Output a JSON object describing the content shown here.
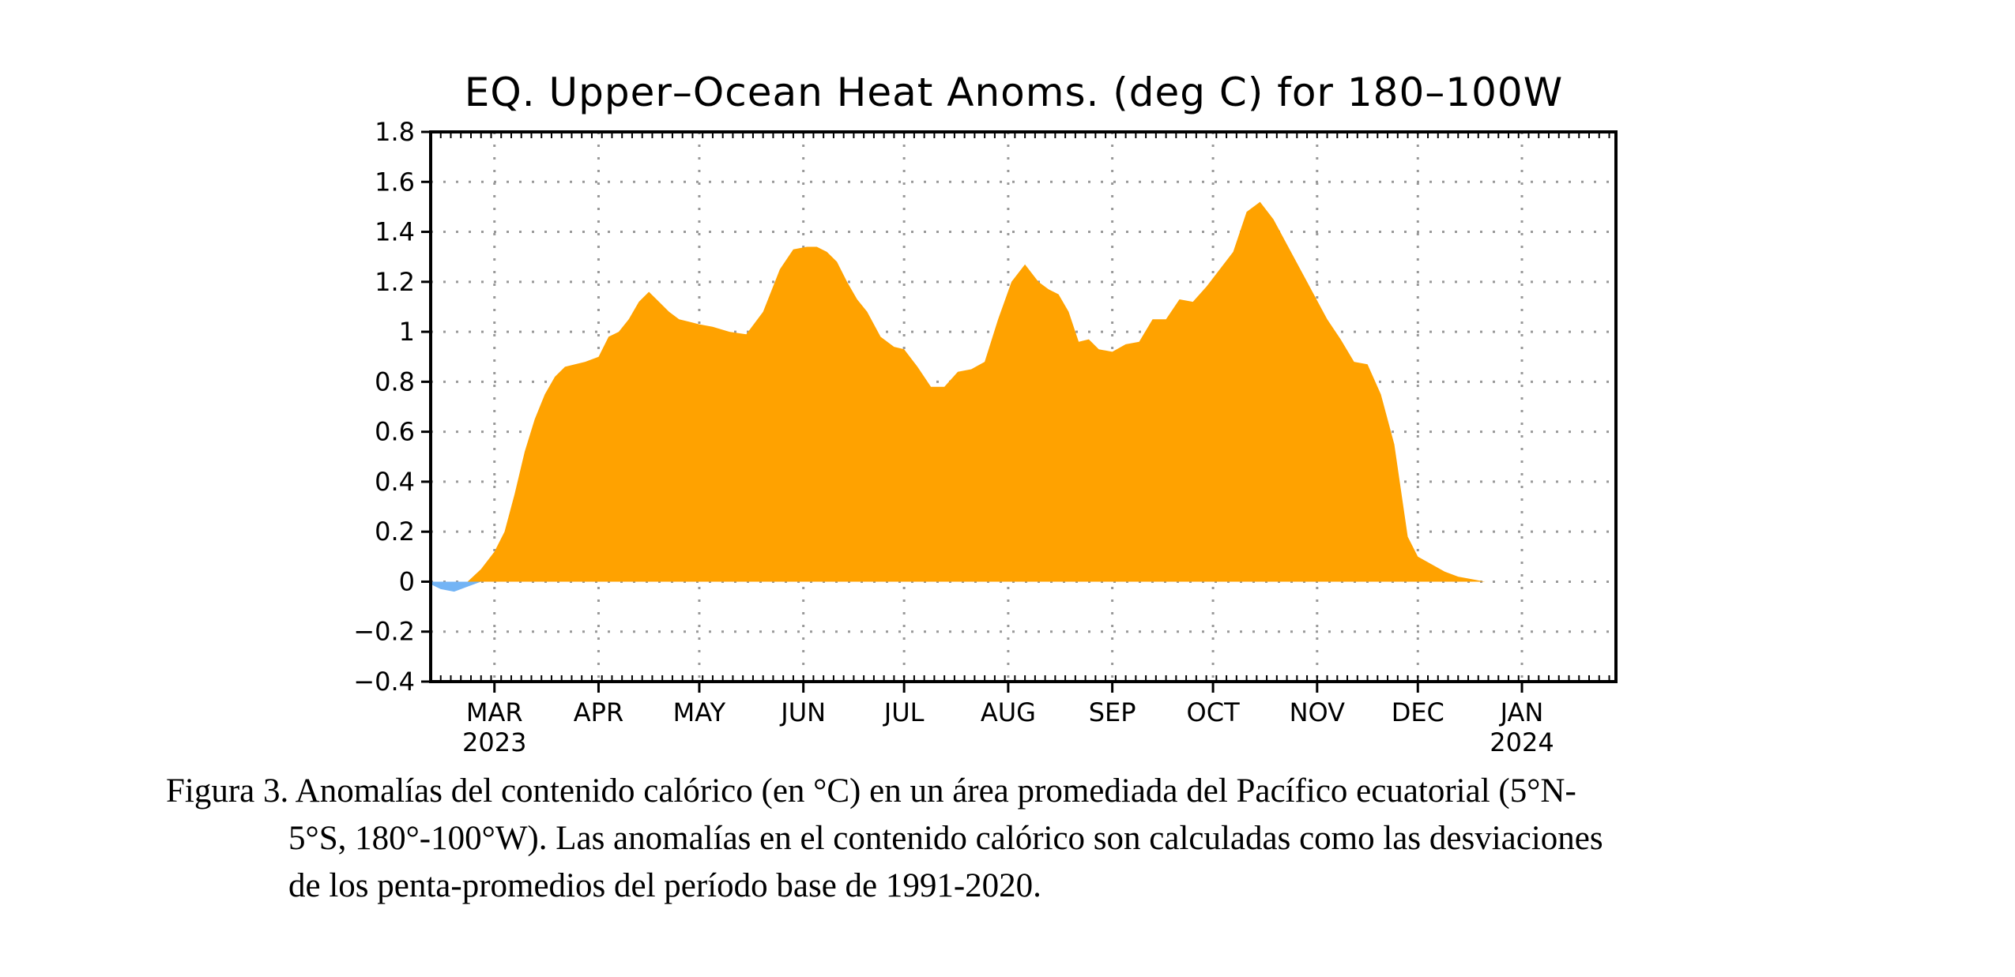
{
  "chart_data": {
    "type": "area",
    "title": "EQ. Upper–Ocean Heat Anoms. (deg C) for 180–100W",
    "xlabel": "",
    "ylabel": "",
    "ylim": [
      -0.4,
      1.8
    ],
    "yticks": [
      1.8,
      1.6,
      1.4,
      1.2,
      1,
      0.8,
      0.6,
      0.4,
      0.2,
      0,
      -0.2,
      -0.4
    ],
    "ytick_labels": [
      "1.8",
      "1.6",
      "1.4",
      "1.2",
      "1",
      "0.8",
      "0.6",
      "0.4",
      "0.2",
      "0",
      "−0.2",
      "−0.4"
    ],
    "xlim": [
      "2023-02-10",
      "2024-01-29"
    ],
    "xticks": [
      {
        "date": "2023-03-01",
        "label": "MAR",
        "year": "2023"
      },
      {
        "date": "2023-04-01",
        "label": "APR",
        "year": ""
      },
      {
        "date": "2023-05-01",
        "label": "MAY",
        "year": ""
      },
      {
        "date": "2023-06-01",
        "label": "JUN",
        "year": ""
      },
      {
        "date": "2023-07-01",
        "label": "JUL",
        "year": ""
      },
      {
        "date": "2023-08-01",
        "label": "AUG",
        "year": ""
      },
      {
        "date": "2023-09-01",
        "label": "SEP",
        "year": ""
      },
      {
        "date": "2023-10-01",
        "label": "OCT",
        "year": ""
      },
      {
        "date": "2023-11-01",
        "label": "NOV",
        "year": ""
      },
      {
        "date": "2023-12-01",
        "label": "DEC",
        "year": ""
      },
      {
        "date": "2024-01-01",
        "label": "JAN",
        "year": "2024"
      }
    ],
    "grid": true,
    "positive_color": "#FFA200",
    "negative_color": "#73B4F5",
    "series": [
      {
        "x": [
          "2023-02-10",
          "2023-02-13",
          "2023-02-17",
          "2023-02-21",
          "2023-02-25",
          "2023-03-01",
          "2023-03-04",
          "2023-03-07",
          "2023-03-10",
          "2023-03-13",
          "2023-03-16",
          "2023-03-19",
          "2023-03-22",
          "2023-03-25",
          "2023-03-28",
          "2023-04-01",
          "2023-04-04",
          "2023-04-07",
          "2023-04-10",
          "2023-04-13",
          "2023-04-16",
          "2023-04-19",
          "2023-04-22",
          "2023-04-25",
          "2023-04-28",
          "2023-05-01",
          "2023-05-05",
          "2023-05-10",
          "2023-05-15",
          "2023-05-20",
          "2023-05-25",
          "2023-05-29",
          "2023-06-02",
          "2023-06-05",
          "2023-06-08",
          "2023-06-11",
          "2023-06-14",
          "2023-06-17",
          "2023-06-20",
          "2023-06-24",
          "2023-06-28",
          "2023-07-01",
          "2023-07-05",
          "2023-07-09",
          "2023-07-13",
          "2023-07-17",
          "2023-07-21",
          "2023-07-25",
          "2023-07-29",
          "2023-08-02",
          "2023-08-06",
          "2023-08-10",
          "2023-08-13",
          "2023-08-16",
          "2023-08-19",
          "2023-08-22",
          "2023-08-25",
          "2023-08-28",
          "2023-09-01",
          "2023-09-05",
          "2023-09-09",
          "2023-09-13",
          "2023-09-17",
          "2023-09-21",
          "2023-09-25",
          "2023-09-29",
          "2023-10-03",
          "2023-10-07",
          "2023-10-11",
          "2023-10-15",
          "2023-10-19",
          "2023-10-23",
          "2023-10-27",
          "2023-10-31",
          "2023-11-04",
          "2023-11-08",
          "2023-11-12",
          "2023-11-16",
          "2023-11-20",
          "2023-11-24",
          "2023-11-28",
          "2023-12-01",
          "2023-12-05",
          "2023-12-09",
          "2023-12-13",
          "2023-12-17",
          "2023-12-21",
          "2023-12-25",
          "2023-12-29",
          "2024-01-02",
          "2024-01-06",
          "2024-01-10",
          "2024-01-14",
          "2024-01-18",
          "2024-01-22",
          "2024-01-26",
          "2024-01-29"
        ],
        "values": [
          -0.01,
          -0.03,
          -0.04,
          -0.02,
          0.05,
          0.12,
          0.2,
          0.35,
          0.52,
          0.65,
          0.75,
          0.82,
          0.86,
          0.87,
          0.88,
          0.9,
          0.98,
          1.0,
          1.05,
          1.12,
          1.16,
          1.12,
          1.08,
          1.05,
          1.04,
          1.03,
          1.02,
          1.0,
          0.99,
          1.08,
          1.25,
          1.33,
          1.34,
          1.34,
          1.32,
          1.28,
          1.2,
          1.13,
          1.08,
          0.98,
          0.94,
          0.93,
          0.86,
          0.78,
          0.78,
          0.84,
          0.85,
          0.88,
          1.05,
          1.2,
          1.27,
          1.2,
          1.17,
          1.15,
          1.08,
          0.96,
          0.97,
          0.93,
          0.92,
          0.95,
          0.96,
          1.05,
          1.05,
          1.13,
          1.12,
          1.18,
          1.25,
          1.32,
          1.48,
          1.52,
          1.45,
          1.35,
          1.25,
          1.15,
          1.05,
          0.97,
          0.88,
          0.87,
          0.75,
          0.55,
          0.18,
          0.1,
          0.07,
          0.04,
          0.02,
          0.01,
          0.0,
          0.0,
          0.0,
          0.0,
          0.0,
          0.0,
          0.0,
          0.0,
          0.0,
          0.0,
          0.0
        ]
      }
    ]
  },
  "caption": {
    "line1": "Figura 3. Anomalías del contenido calórico (en °C) en un área promediada del Pacífico ecuatorial (5°N-",
    "line2": "5°S, 180°-100°W). Las anomalías en el contenido calórico son calculadas como las desviaciones",
    "line3": "de los penta-promedios del período base de 1991-2020."
  }
}
